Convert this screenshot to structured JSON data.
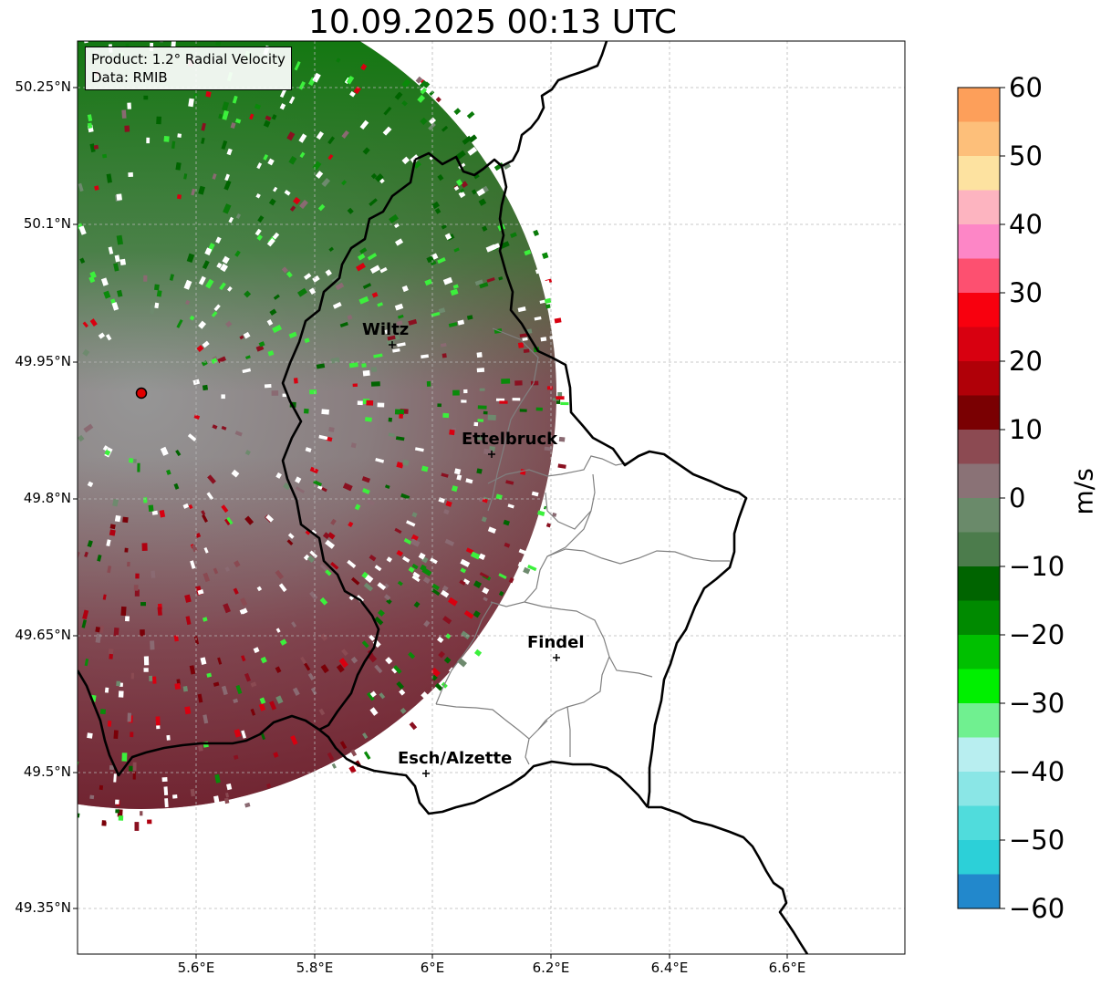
{
  "title": "10.09.2025 00:13 UTC",
  "info": {
    "product": "Product: 1.2° Radial Velocity",
    "data": "Data: RMIB"
  },
  "lat_labels": [
    "50.25°N",
    "50.1°N",
    "49.95°N",
    "49.8°N",
    "49.65°N",
    "49.5°N",
    "49.35°N"
  ],
  "lon_labels": [
    "5.6°E",
    "5.8°E",
    "6°E",
    "6.2°E",
    "6.4°E",
    "6.6°E"
  ],
  "cities": [
    {
      "name": "Wiltz"
    },
    {
      "name": "Ettelbruck"
    },
    {
      "name": "Findel"
    },
    {
      "name": "Esch/Alzette"
    }
  ],
  "colorbar": {
    "label": "m/s",
    "ticks": [
      "60",
      "50",
      "40",
      "30",
      "20",
      "10",
      "0",
      "−10",
      "−20",
      "−30",
      "−40",
      "−50",
      "−60"
    ],
    "min": -60,
    "max": 60,
    "bands": [
      {
        "from": 55,
        "to": 60,
        "color": "#fd9f5a"
      },
      {
        "from": 50,
        "to": 55,
        "color": "#fdbf7a"
      },
      {
        "from": 45,
        "to": 50,
        "color": "#fde2a0"
      },
      {
        "from": 40,
        "to": 45,
        "color": "#fdb4c0"
      },
      {
        "from": 35,
        "to": 40,
        "color": "#fd86c6"
      },
      {
        "from": 30,
        "to": 35,
        "color": "#fd5070"
      },
      {
        "from": 25,
        "to": 30,
        "color": "#f8000e"
      },
      {
        "from": 20,
        "to": 25,
        "color": "#d80010"
      },
      {
        "from": 15,
        "to": 20,
        "color": "#b00008"
      },
      {
        "from": 10,
        "to": 15,
        "color": "#7a0002"
      },
      {
        "from": 5,
        "to": 10,
        "color": "#8c4a52"
      },
      {
        "from": 0,
        "to": 5,
        "color": "#8a7276"
      },
      {
        "from": -5,
        "to": 0,
        "color": "#6a8a6a"
      },
      {
        "from": -10,
        "to": -5,
        "color": "#4c7c4c"
      },
      {
        "from": -15,
        "to": -10,
        "color": "#006400"
      },
      {
        "from": -20,
        "to": -15,
        "color": "#008a00"
      },
      {
        "from": -25,
        "to": -20,
        "color": "#00c000"
      },
      {
        "from": -30,
        "to": -25,
        "color": "#00f000"
      },
      {
        "from": -35,
        "to": -30,
        "color": "#70f090"
      },
      {
        "from": -40,
        "to": -35,
        "color": "#b8eef0"
      },
      {
        "from": -45,
        "to": -40,
        "color": "#8ae6e6"
      },
      {
        "from": -50,
        "to": -45,
        "color": "#50dcdc"
      },
      {
        "from": -55,
        "to": -50,
        "color": "#2cd0d8"
      },
      {
        "from": -60,
        "to": -55,
        "color": "#2288cc"
      }
    ]
  },
  "colors": {
    "radar_near": "#7f7f7f",
    "radar_north": "#1f8a1f",
    "radar_south": "#7a2a32",
    "border_country": "#000000",
    "border_district": "#808080",
    "grid": "#b8b8b8",
    "radar_site": "#e00000"
  }
}
